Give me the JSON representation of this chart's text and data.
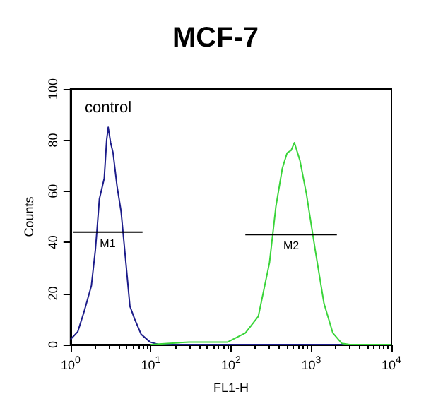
{
  "chart_data": {
    "type": "line",
    "title": "MCF-7",
    "xlabel": "FL1-H",
    "ylabel": "Counts",
    "log": "x",
    "xlim": [
      1,
      10000
    ],
    "xticks": [
      {
        "value": 1,
        "label": "10$^{0}$"
      },
      {
        "value": 10,
        "label": "10$^{1}$"
      },
      {
        "value": 100,
        "label": "10$^{2}$"
      },
      {
        "value": 1000,
        "label": "10$^{3}$"
      },
      {
        "value": 10000,
        "label": "10$^{4}$"
      }
    ],
    "ylim": [
      0,
      100
    ],
    "yticks": [
      0,
      20,
      40,
      60,
      80,
      100
    ],
    "grid": false,
    "legend": false,
    "marker": "none",
    "line_style": "solid",
    "series": [
      {
        "color": "#1c1c8a",
        "x": [
          1,
          1.23,
          1.48,
          1.82,
          2.04,
          2.14,
          2.29,
          2.63,
          2.82,
          2.95,
          3.16,
          3.39,
          3.8,
          4.27,
          4.9,
          5.5,
          6.3,
          7.6,
          9.8,
          12.6,
          100,
          1000,
          10000
        ],
        "values": [
          2,
          5,
          13,
          23,
          37,
          45,
          57,
          65,
          80,
          85,
          79,
          75,
          62,
          52,
          32,
          15,
          10,
          4,
          1,
          0,
          0,
          0,
          0
        ]
      },
      {
        "color": "#3ad43a",
        "x": [
          10,
          30,
          91,
          151,
          219,
          302,
          363,
          437,
          501,
          562,
          617,
          724,
          871,
          1122,
          1445,
          1862,
          2399,
          3020,
          10000
        ],
        "values": [
          0,
          1,
          1,
          4.5,
          11,
          32,
          54,
          69,
          75,
          76,
          79,
          72,
          59,
          37,
          16,
          4.5,
          0.5,
          0,
          0
        ]
      },
      {
        "type": "line",
        "name": "M1",
        "color": "#000000",
        "x": [
          1.07,
          7.9
        ],
        "values": [
          44,
          44
        ]
      },
      {
        "type": "line",
        "name": "M2",
        "color": "#000000",
        "x": [
          151,
          2089
        ],
        "values": [
          43,
          43
        ]
      }
    ],
    "annotations": [
      "control"
    ]
  }
}
